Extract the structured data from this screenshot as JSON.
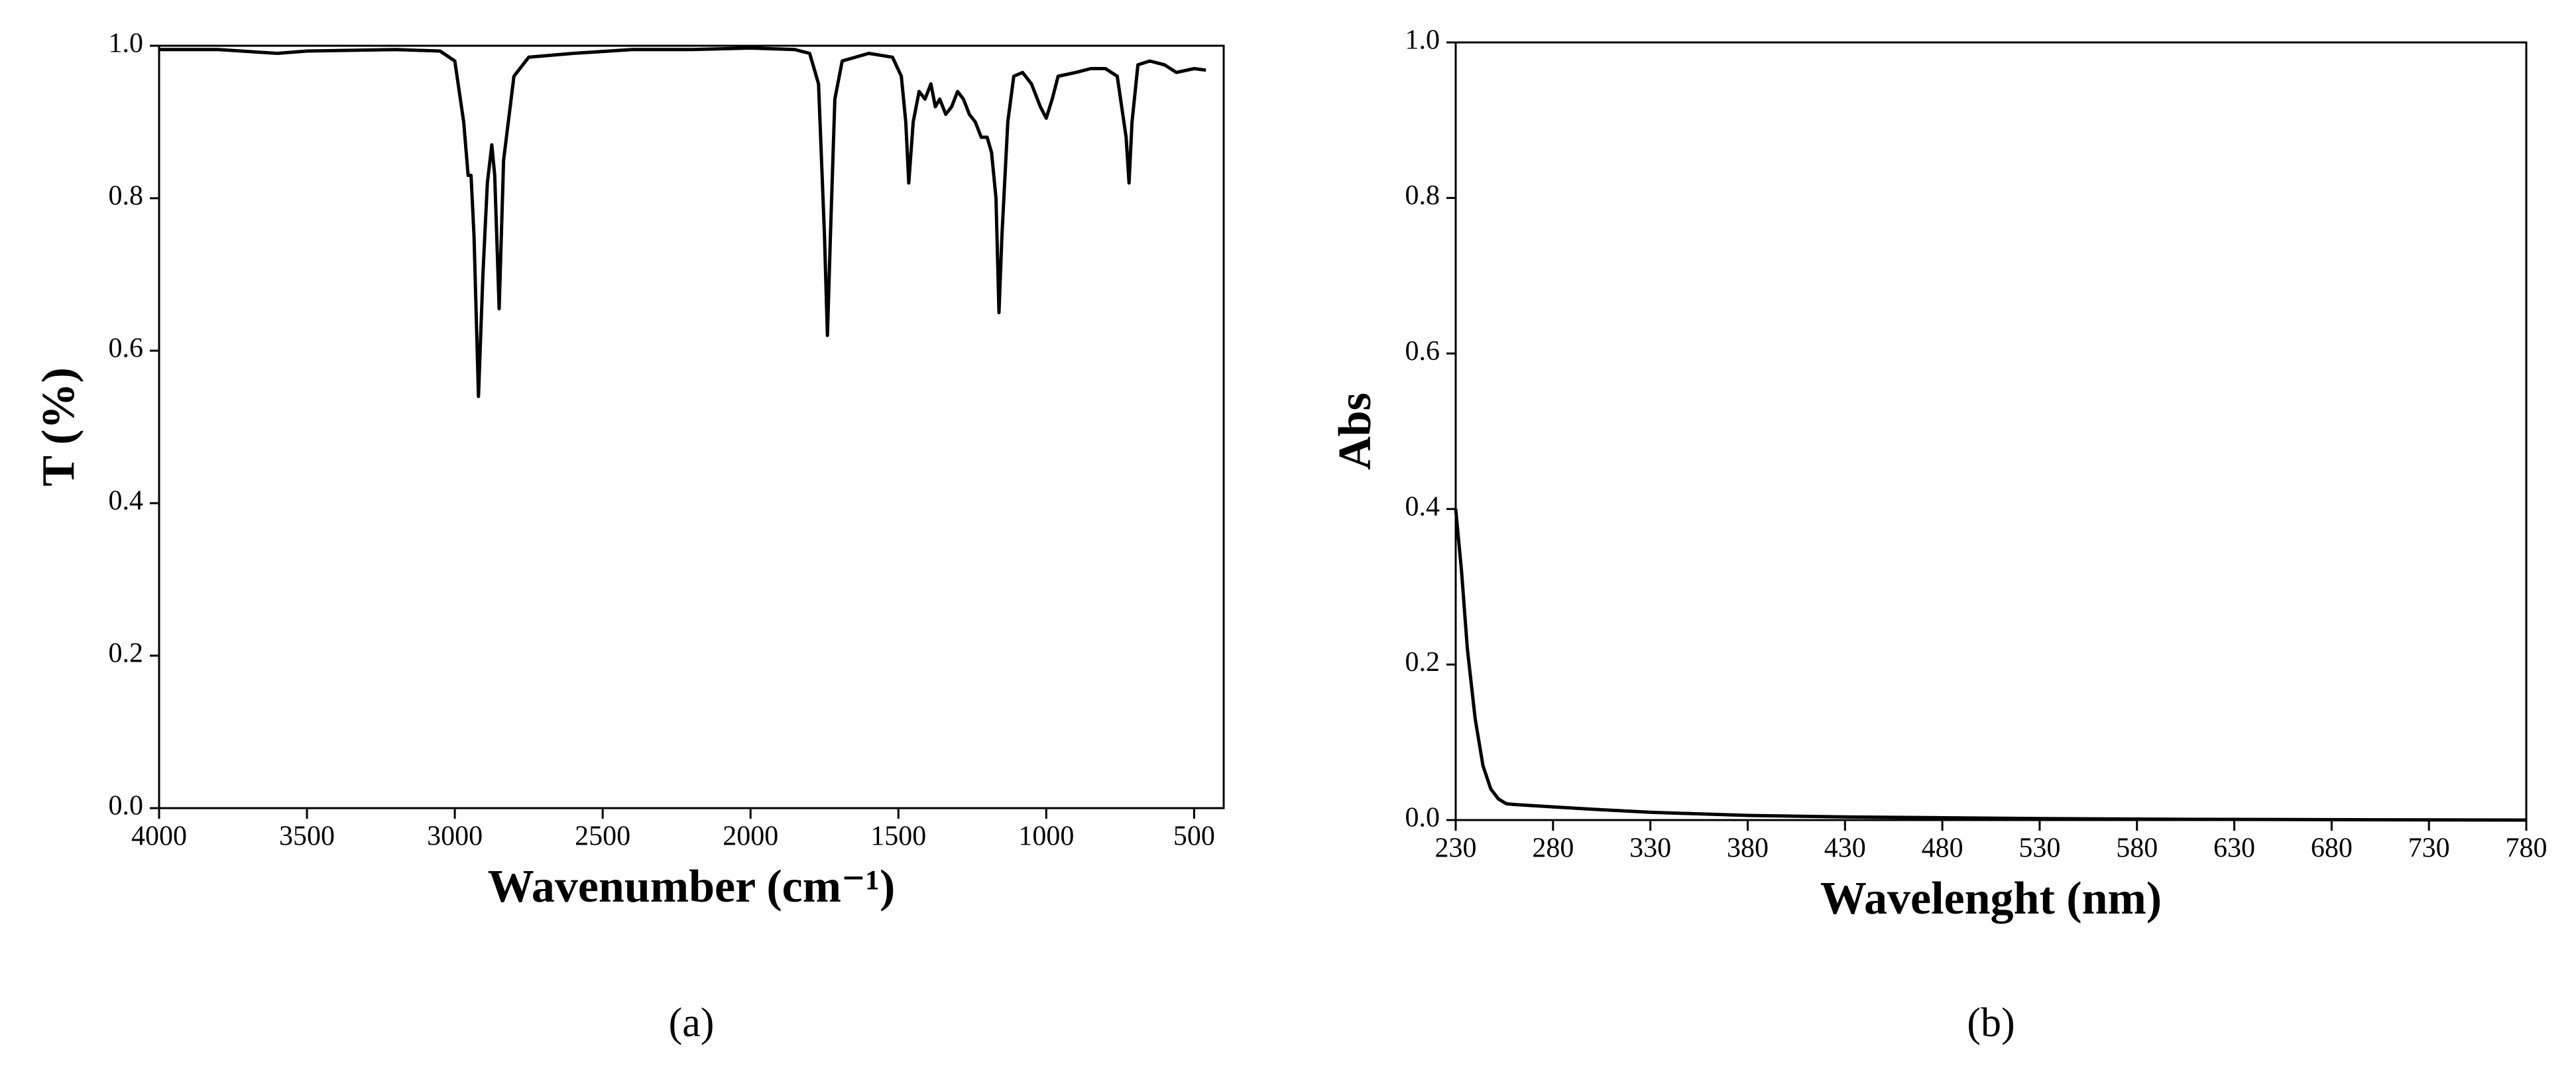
{
  "chart_data": [
    {
      "type": "line",
      "panel_label": "(a)",
      "ylabel": "T (%)",
      "xlabel": "Wavenumber (cm⁻¹)",
      "color": "#000000",
      "xlim": [
        4000,
        400
      ],
      "xticks": [
        4000,
        3500,
        3000,
        2500,
        2000,
        1500,
        1000,
        500
      ],
      "ylim": [
        0,
        1
      ],
      "yticks": [
        {
          "value": 0,
          "label": "0.0"
        },
        0.2,
        0.4,
        0.6,
        0.8,
        {
          "value": 1,
          "label": "1.0"
        }
      ],
      "x": [
        4000,
        3800,
        3600,
        3500,
        3200,
        3050,
        3000,
        2970,
        2955,
        2945,
        2935,
        2920,
        2905,
        2890,
        2875,
        2865,
        2850,
        2835,
        2800,
        2750,
        2600,
        2400,
        2200,
        2000,
        1850,
        1800,
        1770,
        1750,
        1740,
        1730,
        1715,
        1690,
        1600,
        1520,
        1490,
        1475,
        1465,
        1450,
        1430,
        1410,
        1390,
        1375,
        1360,
        1340,
        1320,
        1300,
        1280,
        1260,
        1240,
        1220,
        1200,
        1185,
        1170,
        1160,
        1150,
        1130,
        1110,
        1080,
        1050,
        1020,
        1000,
        980,
        960,
        900,
        850,
        800,
        760,
        730,
        720,
        710,
        690,
        650,
        600,
        560,
        500,
        460
      ],
      "values": [
        0.995,
        0.995,
        0.99,
        0.993,
        0.995,
        0.993,
        0.98,
        0.9,
        0.83,
        0.83,
        0.75,
        0.54,
        0.7,
        0.82,
        0.87,
        0.83,
        0.655,
        0.85,
        0.96,
        0.985,
        0.99,
        0.995,
        0.995,
        0.997,
        0.995,
        0.99,
        0.95,
        0.75,
        0.62,
        0.75,
        0.93,
        0.98,
        0.99,
        0.985,
        0.96,
        0.9,
        0.82,
        0.9,
        0.94,
        0.93,
        0.95,
        0.92,
        0.93,
        0.91,
        0.92,
        0.94,
        0.93,
        0.91,
        0.9,
        0.88,
        0.88,
        0.86,
        0.8,
        0.65,
        0.75,
        0.9,
        0.96,
        0.965,
        0.95,
        0.92,
        0.905,
        0.93,
        0.96,
        0.965,
        0.97,
        0.97,
        0.96,
        0.88,
        0.82,
        0.9,
        0.975,
        0.98,
        0.975,
        0.965,
        0.97,
        0.968
      ]
    },
    {
      "type": "line",
      "panel_label": "(b)",
      "ylabel": "Abs",
      "xlabel": "Wavelenght (nm)",
      "color": "#000000",
      "xlim": [
        230,
        780
      ],
      "xticks": [
        230,
        280,
        330,
        380,
        430,
        480,
        530,
        580,
        630,
        680,
        730,
        780
      ],
      "ylim": [
        0,
        1
      ],
      "yticks": [
        {
          "value": 0,
          "label": "0.0"
        },
        0.2,
        0.4,
        0.6,
        0.8,
        {
          "value": 1,
          "label": "1.0"
        }
      ],
      "x": [
        230,
        233,
        236,
        240,
        244,
        248,
        252,
        256,
        260,
        280,
        300,
        330,
        380,
        430,
        480,
        530,
        600,
        680,
        780
      ],
      "values": [
        0.4,
        0.32,
        0.22,
        0.13,
        0.07,
        0.04,
        0.027,
        0.021,
        0.02,
        0.017,
        0.014,
        0.01,
        0.006,
        0.004,
        0.003,
        0.002,
        0.001,
        0.0005,
        0
      ]
    }
  ]
}
